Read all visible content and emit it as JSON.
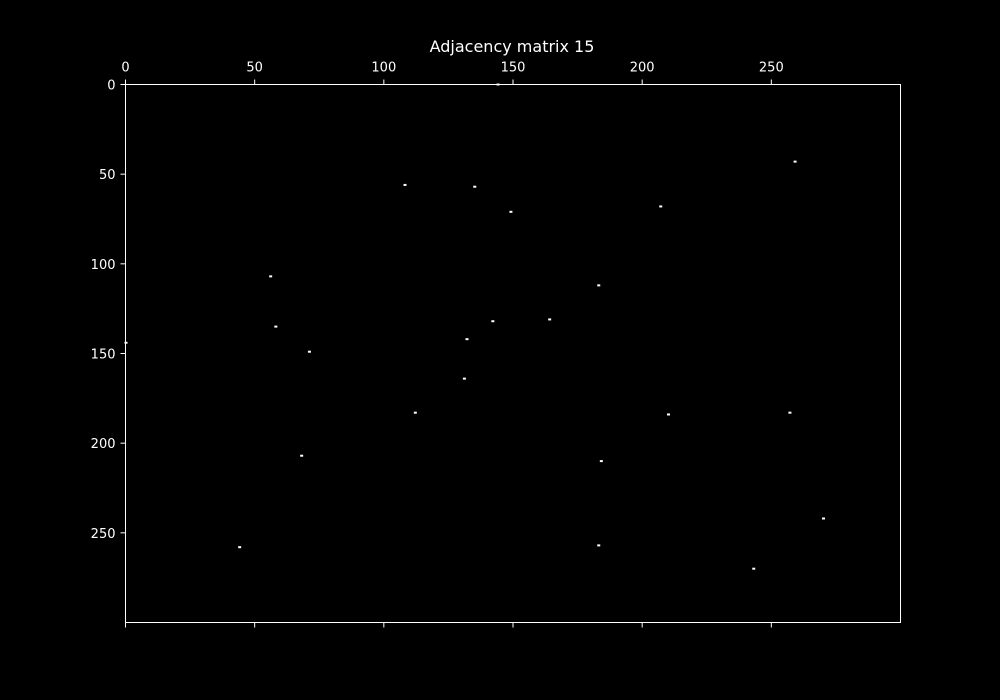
{
  "chart_data": {
    "type": "scatter",
    "title": "Adjacency matrix 15",
    "xlabel": "",
    "ylabel": "",
    "xlim": [
      0,
      300
    ],
    "ylim": [
      300,
      0
    ],
    "x_axis_position": "top",
    "y_axis_inverted": true,
    "grid": false,
    "x_ticks": [
      0,
      50,
      100,
      150,
      200,
      250
    ],
    "y_ticks": [
      0,
      50,
      100,
      150,
      200,
      250
    ],
    "colors": {
      "background": "#000000",
      "foreground": "#ffffff",
      "point": "#ffffff"
    },
    "points": [
      {
        "x": 144,
        "y": 0
      },
      {
        "x": 259,
        "y": 43
      },
      {
        "x": 108,
        "y": 56
      },
      {
        "x": 135,
        "y": 57
      },
      {
        "x": 207,
        "y": 68
      },
      {
        "x": 149,
        "y": 71
      },
      {
        "x": 56,
        "y": 107
      },
      {
        "x": 183,
        "y": 112
      },
      {
        "x": 164,
        "y": 131
      },
      {
        "x": 142,
        "y": 132
      },
      {
        "x": 58,
        "y": 135
      },
      {
        "x": 132,
        "y": 142
      },
      {
        "x": 0,
        "y": 144
      },
      {
        "x": 71,
        "y": 149
      },
      {
        "x": 131,
        "y": 164
      },
      {
        "x": 112,
        "y": 183
      },
      {
        "x": 257,
        "y": 183
      },
      {
        "x": 210,
        "y": 184
      },
      {
        "x": 68,
        "y": 207
      },
      {
        "x": 184,
        "y": 210
      },
      {
        "x": 270,
        "y": 242
      },
      {
        "x": 183,
        "y": 257
      },
      {
        "x": 44,
        "y": 258
      },
      {
        "x": 243,
        "y": 270
      }
    ]
  }
}
